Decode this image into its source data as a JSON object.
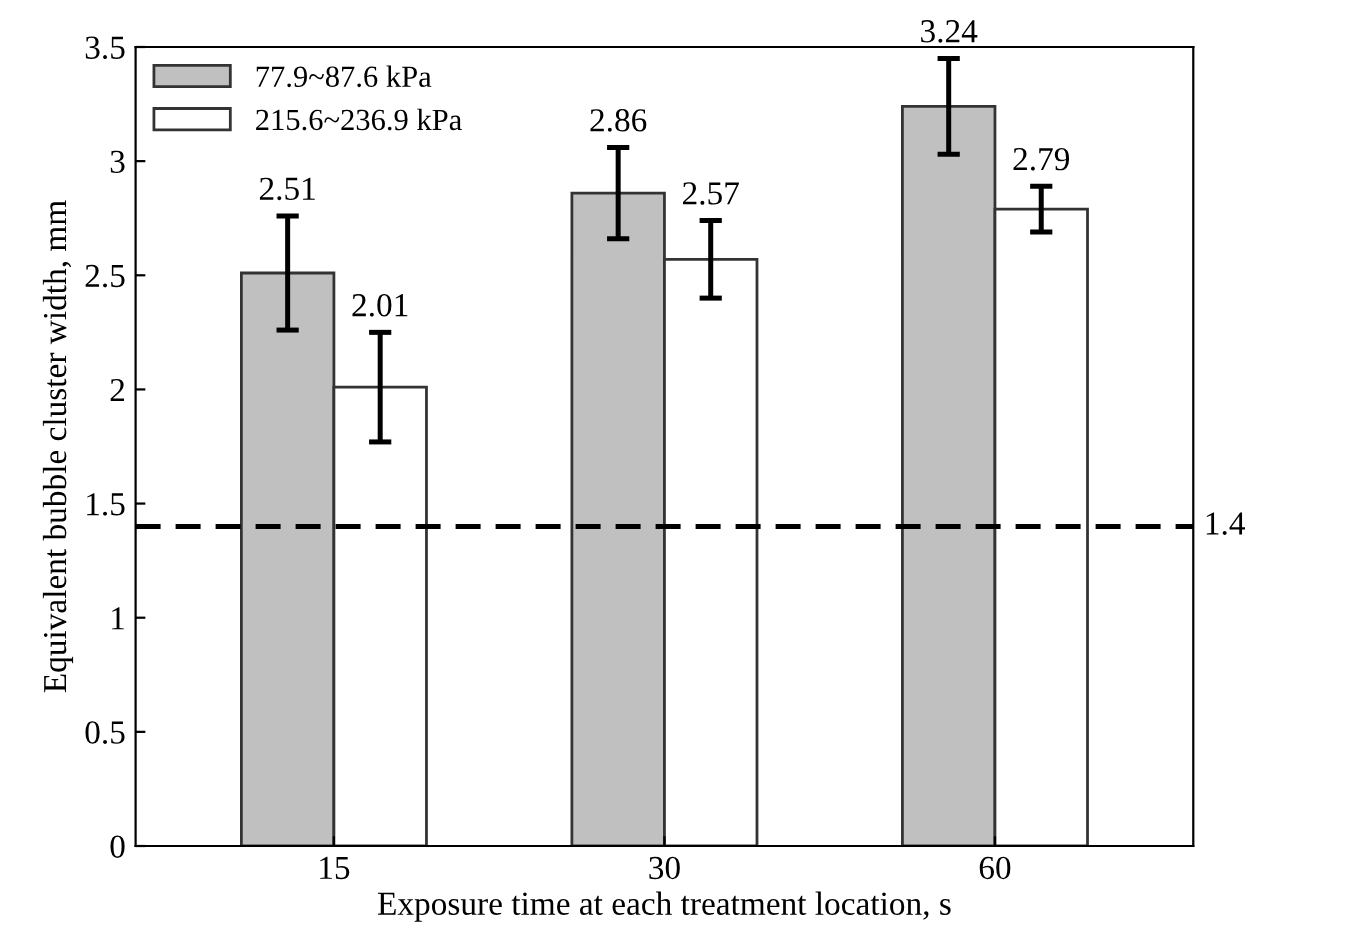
{
  "chart_data": {
    "type": "bar",
    "xlabel": "Exposure time at each treatment location, s",
    "ylabel": "Equivalent bubble cluster width, mm",
    "categories": [
      "15",
      "30",
      "60"
    ],
    "series": [
      {
        "name": "77.9~87.6 kPa",
        "color": "#c0c0c0",
        "values": [
          2.51,
          2.86,
          3.24
        ],
        "errors": [
          0.25,
          0.2,
          0.21
        ]
      },
      {
        "name": "215.6~236.9 kPa",
        "color": "#ffffff",
        "values": [
          2.01,
          2.57,
          2.79
        ],
        "errors": [
          0.24,
          0.17,
          0.1
        ]
      }
    ],
    "data_labels": true,
    "ylim": [
      0,
      3.5
    ],
    "yticks": [
      0,
      0.5,
      1,
      1.5,
      2,
      2.5,
      3,
      3.5
    ],
    "ref_lines": [
      {
        "axis": "y",
        "value": 1.4,
        "label": "1.4",
        "color": "#000000",
        "line_style": "dashed"
      }
    ],
    "legend": "top left",
    "grid": false
  }
}
